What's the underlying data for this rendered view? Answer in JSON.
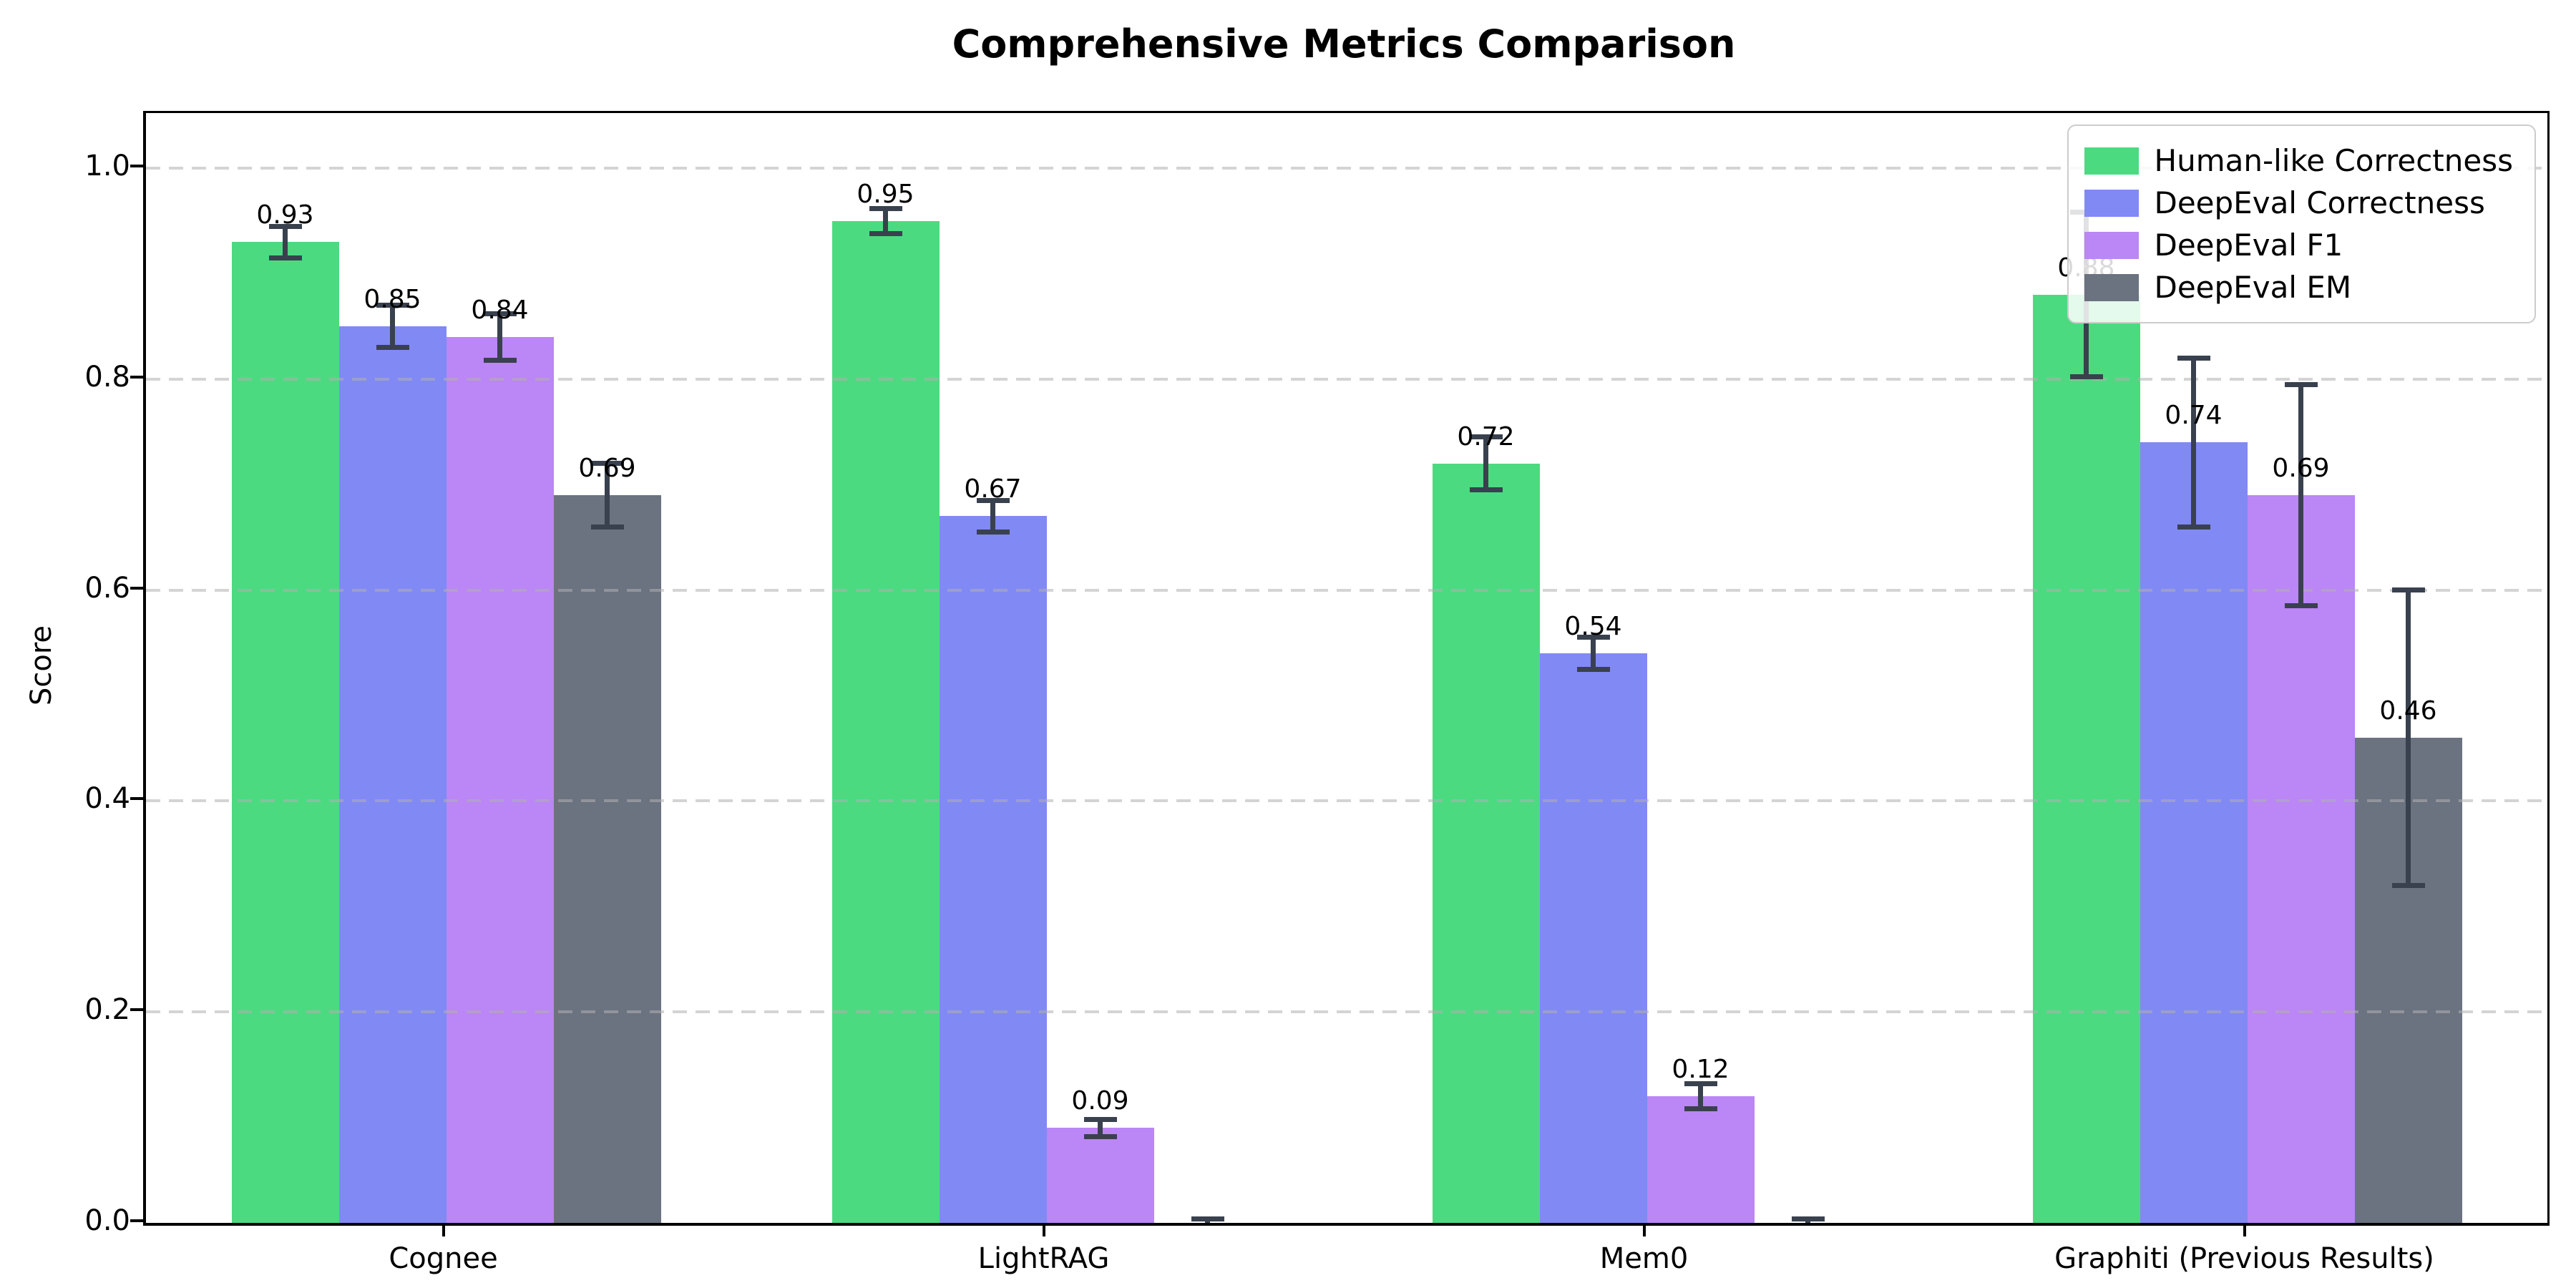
{
  "chart_data": {
    "type": "bar",
    "title": "Comprehensive Metrics Comparison",
    "ylabel": "Score",
    "xlabel": "",
    "categories": [
      "Cognee",
      "LightRAG",
      "Mem0",
      "Graphiti (Previous Results)"
    ],
    "series": [
      {
        "name": "Human-like Correctness",
        "color": "#4cda81",
        "values": [
          0.93,
          0.95,
          0.72,
          0.88
        ],
        "errors": [
          0.015,
          0.012,
          0.025,
          0.078
        ],
        "labels": [
          "0.93",
          "0.95",
          "0.72",
          "0.88"
        ]
      },
      {
        "name": "DeepEval Correctness",
        "color": "#8189f5",
        "values": [
          0.85,
          0.67,
          0.54,
          0.74
        ],
        "errors": [
          0.02,
          0.015,
          0.015,
          0.08
        ],
        "labels": [
          "0.85",
          "0.67",
          "0.54",
          "0.74"
        ]
      },
      {
        "name": "DeepEval F1",
        "color": "#bb86f5",
        "values": [
          0.84,
          0.09,
          0.12,
          0.69
        ],
        "errors": [
          0.022,
          0.008,
          0.012,
          0.105
        ],
        "labels": [
          "0.84",
          "0.09",
          "0.12",
          "0.69"
        ]
      },
      {
        "name": "DeepEval EM",
        "color": "#6b7280",
        "values": [
          0.69,
          0.0,
          0.0,
          0.46
        ],
        "errors": [
          0.03,
          0.004,
          0.004,
          0.14
        ],
        "labels": [
          "0.69",
          "",
          "",
          "0.46"
        ]
      }
    ],
    "yticks": [
      "0.0",
      "0.2",
      "0.4",
      "0.6",
      "0.8",
      "1.0"
    ],
    "ylim": [
      0.0,
      1.05
    ],
    "grid": "horizontal-dashed",
    "legend_position": "upper-right",
    "colors": {
      "error_bar": "#39414e",
      "grid": "#b0b0b0",
      "axis": "#000000",
      "background": "#ffffff"
    }
  }
}
